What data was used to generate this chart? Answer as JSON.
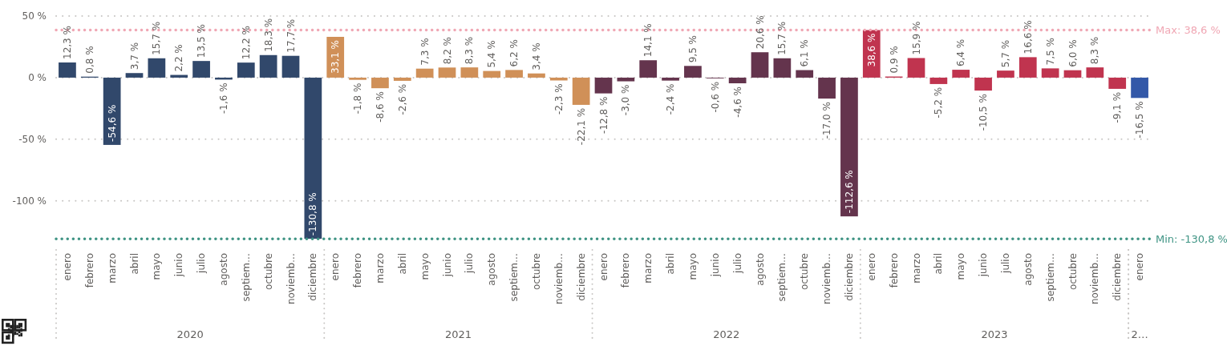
{
  "chart_data": {
    "type": "bar",
    "categories": [
      "enero",
      "febrero",
      "marzo",
      "abril",
      "mayo",
      "junio",
      "julio",
      "agosto",
      "septiem…",
      "octubre",
      "noviemb…",
      "diciembre",
      "enero",
      "febrero",
      "marzo",
      "abril",
      "mayo",
      "junio",
      "julio",
      "agosto",
      "septiem…",
      "octubre",
      "noviemb…",
      "diciembre",
      "enero",
      "febrero",
      "marzo",
      "abril",
      "mayo",
      "junio",
      "julio",
      "agosto",
      "septiem…",
      "octubre",
      "noviemb…",
      "diciembre",
      "enero",
      "febrero",
      "marzo",
      "abril",
      "mayo",
      "junio",
      "julio",
      "agosto",
      "septiem…",
      "octubre",
      "noviemb…",
      "diciembre",
      "enero"
    ],
    "values": [
      12.3,
      0.8,
      -54.6,
      3.7,
      15.7,
      2.2,
      13.5,
      -1.6,
      12.2,
      18.3,
      17.7,
      -130.8,
      33.1,
      -1.8,
      -8.6,
      -2.6,
      7.3,
      8.2,
      8.3,
      5.4,
      6.2,
      3.4,
      -2.3,
      -22.1,
      -12.8,
      -3.0,
      14.1,
      -2.4,
      9.5,
      -0.6,
      -4.6,
      20.6,
      15.7,
      6.1,
      -17.0,
      -112.6,
      38.6,
      0.9,
      15.9,
      -5.2,
      6.4,
      -10.5,
      5.7,
      16.6,
      7.5,
      6.0,
      8.3,
      -9.1,
      -16.5
    ],
    "value_labels": [
      "12,3 %",
      "0,8 %",
      "-54,6 %",
      "3,7 %",
      "15,7 %",
      "2,2 %",
      "13,5 %",
      "-1,6 %",
      "12,2 %",
      "18,3 %",
      "17,7 %",
      "-130,8 %",
      "33,1 %",
      "-1,8 %",
      "-8,6 %",
      "-2,6 %",
      "7,3 %",
      "8,2 %",
      "8,3 %",
      "5,4 %",
      "6,2 %",
      "3,4 %",
      "-2,3 %",
      "-22,1 %",
      "-12,8 %",
      "-3,0 %",
      "14,1 %",
      "-2,4 %",
      "9,5 %",
      "-0,6 %",
      "-4,6 %",
      "20,6 %",
      "15,7 %",
      "6,1 %",
      "-17,0 %",
      "-112,6 %",
      "38,6 %",
      "0,9 %",
      "15,9 %",
      "-5,2 %",
      "6,4 %",
      "-10,5 %",
      "5,7 %",
      "16,6 %",
      "7,5 %",
      "6,0 %",
      "8,3 %",
      "-9,1 %",
      "-16,5 %"
    ],
    "colors": [
      "#31486b",
      "#31486b",
      "#31486b",
      "#31486b",
      "#31486b",
      "#31486b",
      "#31486b",
      "#31486b",
      "#31486b",
      "#31486b",
      "#31486b",
      "#31486b",
      "#d09058",
      "#d09058",
      "#d09058",
      "#d09058",
      "#d09058",
      "#d09058",
      "#d09058",
      "#d09058",
      "#d09058",
      "#d09058",
      "#d09058",
      "#d09058",
      "#64344d",
      "#64344d",
      "#64344d",
      "#64344d",
      "#64344d",
      "#64344d",
      "#64344d",
      "#64344d",
      "#64344d",
      "#64344d",
      "#64344d",
      "#64344d",
      "#c0344f",
      "#c0344f",
      "#c0344f",
      "#c0344f",
      "#c0344f",
      "#c0344f",
      "#c0344f",
      "#c0344f",
      "#c0344f",
      "#c0344f",
      "#c0344f",
      "#c0344f",
      "#3358a8"
    ],
    "ylim": [
      -132,
      50
    ],
    "yticks": [
      {
        "value": 50,
        "label": "50 %"
      },
      {
        "value": 0,
        "label": "0 %"
      },
      {
        "value": -50,
        "label": "-50 %"
      },
      {
        "value": -100,
        "label": "-100 %"
      }
    ],
    "grid": "y",
    "ref_lines": [
      {
        "axis": "y",
        "value": 38.6,
        "label": "Max: 38,6 %",
        "color": "#f0a7b4",
        "line_style": "dotted"
      },
      {
        "axis": "y",
        "value": -130.8,
        "label": "Min: -130,8 %",
        "color": "#3f9484",
        "line_style": "dotted"
      }
    ],
    "annotations": [
      "2020",
      "2021",
      "2022",
      "2023",
      "2…"
    ]
  }
}
